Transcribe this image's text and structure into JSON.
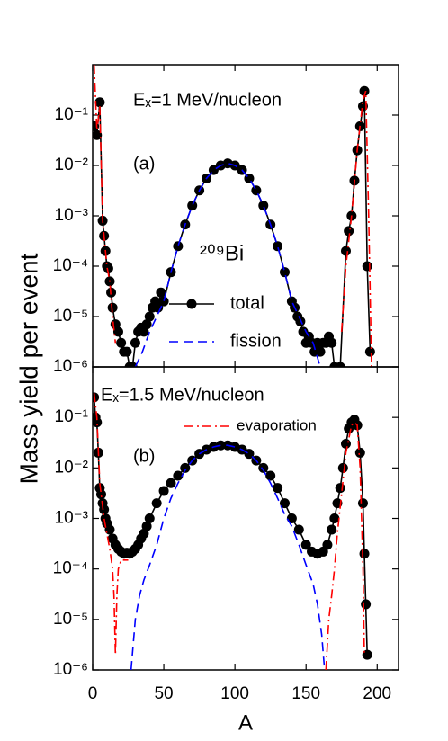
{
  "chart_data": [
    {
      "type": "line",
      "log_y": true,
      "ylabel": "Mass yield per event",
      "xlim": [
        0,
        215
      ],
      "xticks": [
        0,
        50,
        100,
        150,
        200
      ],
      "ylim": [
        1e-06,
        1
      ],
      "yticks": [
        {
          "value": 1e-06,
          "label": "10⁻⁶"
        },
        {
          "value": 1e-05,
          "label": "10⁻⁵"
        },
        {
          "value": 0.0001,
          "label": "10⁻⁴"
        },
        {
          "value": 0.001,
          "label": "10⁻³"
        },
        {
          "value": 0.01,
          "label": "10⁻²"
        },
        {
          "value": 0.1,
          "label": "10⁻¹"
        }
      ],
      "annotations": [
        "Eₓ=1 MeV/nucleon",
        "(a)",
        "²⁰⁹Bi"
      ],
      "series": [
        {
          "name": "total",
          "color": "#000000",
          "marker": "circle",
          "dash": "solid",
          "x": [
            1,
            3,
            5,
            7,
            8,
            9,
            10,
            11,
            12,
            13,
            14,
            16,
            18,
            20,
            22,
            24,
            26,
            28,
            30,
            32,
            34,
            36,
            38,
            40,
            42,
            44,
            46,
            48,
            50,
            55,
            60,
            65,
            70,
            75,
            80,
            85,
            90,
            95,
            100,
            105,
            110,
            115,
            120,
            125,
            130,
            135,
            140,
            142,
            144,
            146,
            148,
            150,
            152,
            154,
            156,
            158,
            160,
            162,
            164,
            166,
            168,
            170,
            174,
            178,
            180,
            182,
            184,
            186,
            188,
            190,
            191,
            193,
            195
          ],
          "values": [
            0.06,
            0.04,
            0.18,
            0.0008,
            0.0004,
            0.0002,
            0.0001,
            9e-05,
            5e-05,
            3e-05,
            1.5e-05,
            7e-06,
            5e-06,
            3e-06,
            2e-06,
            2e-06,
            1e-06,
            1e-06,
            3e-06,
            5e-06,
            6e-06,
            5e-06,
            7e-06,
            1e-05,
            1.5e-05,
            2e-05,
            1.5e-05,
            3e-05,
            2e-05,
            7.6e-05,
            0.00025,
            0.00067,
            0.0016,
            0.0032,
            0.0055,
            0.0081,
            0.01,
            0.011,
            0.01,
            0.0081,
            0.0055,
            0.0032,
            0.0016,
            0.00067,
            0.00025,
            7.6e-05,
            2e-05,
            1.5e-05,
            1e-05,
            8e-06,
            5e-06,
            3e-06,
            4e-06,
            3e-06,
            2e-06,
            3e-06,
            2e-06,
            3e-06,
            3e-06,
            4e-06,
            3e-06,
            1e-06,
            1e-06,
            0.0002,
            0.0005,
            0.001,
            0.005,
            0.02,
            0.06,
            0.15,
            0.3,
            0.0001,
            2e-06
          ]
        },
        {
          "name": "fission",
          "color": "#0000ff",
          "marker": "none",
          "dash": "dashed",
          "x": [
            30,
            35,
            40,
            45,
            50,
            55,
            60,
            65,
            70,
            75,
            80,
            85,
            90,
            95,
            100,
            105,
            110,
            115,
            120,
            125,
            130,
            135,
            140,
            145,
            150,
            155,
            160
          ],
          "values": [
            1e-06,
            2e-06,
            5e-06,
            1e-05,
            2e-05,
            7.6e-05,
            0.00025,
            0.00067,
            0.0016,
            0.0032,
            0.0055,
            0.0081,
            0.01,
            0.011,
            0.01,
            0.0081,
            0.0055,
            0.0032,
            0.0016,
            0.00067,
            0.00025,
            7.6e-05,
            2e-05,
            1e-05,
            5e-06,
            3e-06,
            1e-06
          ]
        },
        {
          "color": "#ff0000",
          "marker": "none",
          "dash": "dashdot",
          "x": [
            1,
            3,
            5,
            7,
            10,
            12,
            14,
            16,
            null,
            175,
            178,
            182,
            186,
            190,
            192,
            194,
            196
          ],
          "values": [
            1,
            0.05,
            0.15,
            0.0008,
            0.0001,
            5e-05,
            1e-05,
            3e-06,
            null,
            5e-06,
            0.0001,
            0.001,
            0.02,
            0.2,
            0.3,
            0.001,
            1e-06
          ]
        }
      ]
    },
    {
      "type": "line",
      "log_y": true,
      "xlabel": "A",
      "xlim": [
        0,
        215
      ],
      "xticks": [
        0,
        50,
        100,
        150,
        200
      ],
      "ylim": [
        1e-06,
        1
      ],
      "yticks": [
        {
          "value": 1e-06,
          "label": "10⁻⁶"
        },
        {
          "value": 1e-05,
          "label": "10⁻⁵"
        },
        {
          "value": 0.0001,
          "label": "10⁻⁴"
        },
        {
          "value": 0.001,
          "label": "10⁻³"
        },
        {
          "value": 0.01,
          "label": "10⁻²"
        },
        {
          "value": 0.1,
          "label": "10⁻¹"
        }
      ],
      "annotations": [
        "Eₓ=1.5 MeV/nucleon",
        "(b)"
      ],
      "series": [
        {
          "color": "#000000",
          "marker": "circle",
          "dash": "solid",
          "x": [
            1,
            2,
            3,
            4,
            5,
            6,
            7,
            8,
            9,
            10,
            12,
            14,
            16,
            18,
            20,
            22,
            24,
            26,
            28,
            30,
            32,
            34,
            36,
            38,
            40,
            45,
            50,
            55,
            60,
            65,
            70,
            75,
            80,
            85,
            90,
            95,
            100,
            105,
            110,
            115,
            120,
            125,
            130,
            135,
            140,
            145,
            150,
            154,
            158,
            162,
            165,
            168,
            170,
            172,
            174,
            176,
            178,
            180,
            182,
            184,
            186,
            188,
            190,
            191,
            192,
            193
          ],
          "values": [
            0.25,
            0.1,
            0.08,
            0.02,
            0.004,
            0.003,
            0.002,
            0.0015,
            0.001,
            0.0008,
            0.0006,
            0.0004,
            0.0003,
            0.00025,
            0.00022,
            0.0002,
            0.00021,
            0.0002,
            0.00022,
            0.00025,
            0.0003,
            0.0004,
            0.0005,
            0.0007,
            0.001,
            0.002,
            0.0035,
            0.005,
            0.007,
            0.01,
            0.014,
            0.019,
            0.023,
            0.026,
            0.028,
            0.028,
            0.026,
            0.023,
            0.019,
            0.014,
            0.01,
            0.007,
            0.004,
            0.002,
            0.001,
            0.0006,
            0.0003,
            0.00022,
            0.0002,
            0.00022,
            0.0003,
            0.0006,
            0.001,
            0.002,
            0.004,
            0.01,
            0.03,
            0.06,
            0.08,
            0.09,
            0.07,
            0.02,
            0.002,
            0.0002,
            2e-05,
            2e-06
          ]
        },
        {
          "color": "#0000ff",
          "marker": "none",
          "dash": "dashed",
          "x": [
            27,
            30,
            33,
            36,
            40,
            45,
            50,
            55,
            60,
            65,
            70,
            75,
            80,
            85,
            90,
            95,
            100,
            105,
            110,
            115,
            120,
            125,
            130,
            135,
            140,
            145,
            150,
            155,
            158,
            161,
            163
          ],
          "values": [
            1e-06,
            1e-05,
            3e-05,
            6e-05,
            0.00012,
            0.0003,
            0.001,
            0.0025,
            0.005,
            0.009,
            0.014,
            0.019,
            0.023,
            0.026,
            0.028,
            0.028,
            0.026,
            0.023,
            0.019,
            0.014,
            0.009,
            0.005,
            0.0025,
            0.0012,
            0.0007,
            0.0003,
            0.00012,
            5e-05,
            2e-05,
            5e-06,
            1e-06
          ]
        },
        {
          "name": "evaporation",
          "color": "#ff0000",
          "marker": "none",
          "dash": "dashdot",
          "x": [
            1,
            3,
            5,
            8,
            10,
            12,
            14,
            15,
            16,
            17,
            18,
            20,
            25,
            null,
            164,
            166,
            168,
            170,
            172,
            175,
            178,
            182,
            184,
            186,
            188,
            190,
            191
          ],
          "values": [
            0.3,
            0.1,
            0.005,
            0.001,
            0.0005,
            0.00025,
            0.0001,
            3e-05,
            2e-06,
            3e-05,
            0.0001,
            0.00015,
            0.00015,
            null,
            1e-06,
            1e-05,
            3e-05,
            0.0001,
            0.0005,
            0.003,
            0.02,
            0.07,
            0.08,
            0.07,
            0.01,
            0.0001,
            2e-06
          ]
        }
      ]
    }
  ]
}
